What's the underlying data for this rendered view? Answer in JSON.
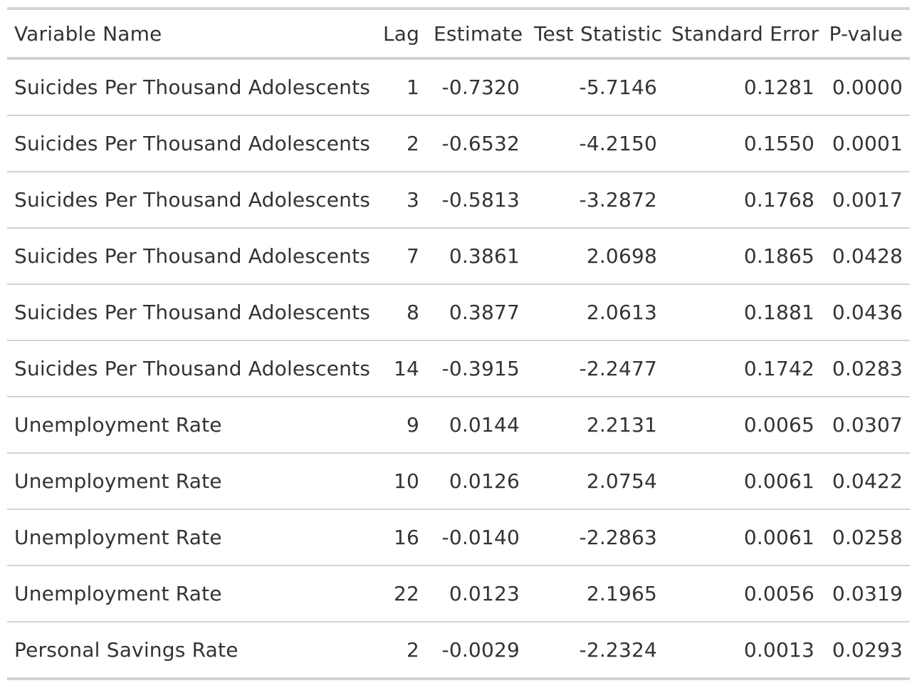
{
  "table": {
    "headers": {
      "variable_name": "Variable Name",
      "lag": "Lag",
      "estimate": "Estimate",
      "test_statistic": "Test Statistic",
      "standard_error": "Standard Error",
      "p_value": "P-value"
    },
    "rows": [
      {
        "variable_name": "Suicides Per Thousand Adolescents",
        "lag": "1",
        "estimate": "-0.7320",
        "test_statistic": "-5.7146",
        "standard_error": "0.1281",
        "p_value": "0.0000"
      },
      {
        "variable_name": "Suicides Per Thousand Adolescents",
        "lag": "2",
        "estimate": "-0.6532",
        "test_statistic": "-4.2150",
        "standard_error": "0.1550",
        "p_value": "0.0001"
      },
      {
        "variable_name": "Suicides Per Thousand Adolescents",
        "lag": "3",
        "estimate": "-0.5813",
        "test_statistic": "-3.2872",
        "standard_error": "0.1768",
        "p_value": "0.0017"
      },
      {
        "variable_name": "Suicides Per Thousand Adolescents",
        "lag": "7",
        "estimate": "0.3861",
        "test_statistic": "2.0698",
        "standard_error": "0.1865",
        "p_value": "0.0428"
      },
      {
        "variable_name": "Suicides Per Thousand Adolescents",
        "lag": "8",
        "estimate": "0.3877",
        "test_statistic": "2.0613",
        "standard_error": "0.1881",
        "p_value": "0.0436"
      },
      {
        "variable_name": "Suicides Per Thousand Adolescents",
        "lag": "14",
        "estimate": "-0.3915",
        "test_statistic": "-2.2477",
        "standard_error": "0.1742",
        "p_value": "0.0283"
      },
      {
        "variable_name": "Unemployment Rate",
        "lag": "9",
        "estimate": "0.0144",
        "test_statistic": "2.2131",
        "standard_error": "0.0065",
        "p_value": "0.0307"
      },
      {
        "variable_name": "Unemployment Rate",
        "lag": "10",
        "estimate": "0.0126",
        "test_statistic": "2.0754",
        "standard_error": "0.0061",
        "p_value": "0.0422"
      },
      {
        "variable_name": "Unemployment Rate",
        "lag": "16",
        "estimate": "-0.0140",
        "test_statistic": "-2.2863",
        "standard_error": "0.0061",
        "p_value": "0.0258"
      },
      {
        "variable_name": "Unemployment Rate",
        "lag": "22",
        "estimate": "0.0123",
        "test_statistic": "2.1965",
        "standard_error": "0.0056",
        "p_value": "0.0319"
      },
      {
        "variable_name": "Personal Savings Rate",
        "lag": "2",
        "estimate": "-0.0029",
        "test_statistic": "-2.2324",
        "standard_error": "0.0013",
        "p_value": "0.0293"
      }
    ]
  },
  "colors": {
    "text": "#333333",
    "rule": "#d3d3d3",
    "background": "#ffffff"
  }
}
